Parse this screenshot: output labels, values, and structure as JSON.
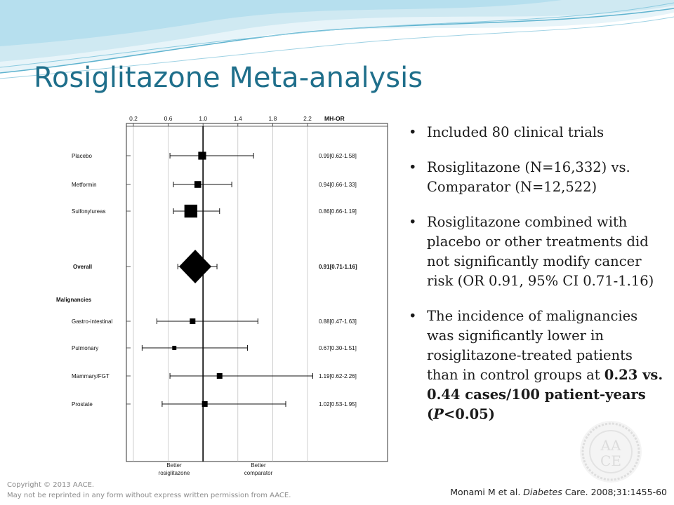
{
  "slide": {
    "title": "Rosiglitazone Meta-analysis"
  },
  "chart_data": {
    "type": "forest",
    "x_scale": "linear",
    "xlim": [
      0.2,
      2.2
    ],
    "xticks": [
      "0.2",
      "0.6",
      "1.0",
      "1.4",
      "1.8",
      "2.2"
    ],
    "stat_header": "MH-OR",
    "reference_line": 1.0,
    "left_annotation": [
      "Better",
      "rosiglitazone"
    ],
    "right_annotation": [
      "Better",
      "comparator"
    ],
    "group_header": "Malignancies",
    "rows": [
      {
        "label": "Placebo",
        "or": 0.99,
        "lo": 0.62,
        "hi": 1.58,
        "text": "0.99[0.62-1.58]",
        "kind": "study",
        "weight": 0.45
      },
      {
        "label": "Metformin",
        "or": 0.94,
        "lo": 0.66,
        "hi": 1.33,
        "text": "0.94[0.66-1.33]",
        "kind": "study",
        "weight": 0.35
      },
      {
        "label": "Sulfonylureas",
        "or": 0.86,
        "lo": 0.66,
        "hi": 1.19,
        "text": "0.86[0.66-1.19]",
        "kind": "study",
        "weight": 0.9
      },
      {
        "label": "Overall",
        "or": 0.91,
        "lo": 0.71,
        "hi": 1.16,
        "text": "0.91[0.71-1.16]",
        "kind": "overall"
      },
      {
        "label": "Gastro-intestinal",
        "or": 0.88,
        "lo": 0.47,
        "hi": 1.63,
        "text": "0.88[0.47-1.63]",
        "kind": "study",
        "weight": 0.25
      },
      {
        "label": "Pulmonary",
        "or": 0.67,
        "lo": 0.3,
        "hi": 1.51,
        "text": "0.67[0.30-1.51]",
        "kind": "study",
        "weight": 0.12
      },
      {
        "label": "Mammary/FGT",
        "or": 1.19,
        "lo": 0.62,
        "hi": 2.26,
        "text": "1.19[0.62-2.26]",
        "kind": "study",
        "weight": 0.25
      },
      {
        "label": "Prostate",
        "or": 1.02,
        "lo": 0.53,
        "hi": 1.95,
        "text": "1.02[0.53-1.95]",
        "kind": "study",
        "weight": 0.25
      }
    ]
  },
  "bullets": [
    {
      "text": "Included 80 clinical trials"
    },
    {
      "text": "Rosiglitazone (N=16,332) vs. Comparator (N=12,522)"
    },
    {
      "text": "Rosiglitazone combined with placebo or other treatments did not significantly modify cancer risk (OR 0.91, 95% CI 0.71-1.16)"
    },
    {
      "pre": "The incidence of malignancies was significantly lower in rosiglitazone-treated patients than in control groups at ",
      "bold": "0.23 vs. 0.44 cases/100 patient-years (",
      "bold_italic": "P",
      "bold_post": "<0.05)"
    }
  ],
  "seal": {
    "line1": "AA",
    "line2": "CE"
  },
  "footer": {
    "copyright": "Copyright © 2013 AACE.",
    "permission": "May not be reprinted in any form without express written permission from AACE.",
    "citation_pre": "Monami M et al. ",
    "citation_journal": "Diabetes",
    "citation_post": " Care. 2008;31:1455-60"
  },
  "colors": {
    "title": "#1f6f8b",
    "wave_light": "#cfe9f2",
    "wave_mid": "#9fd2e4",
    "wave_line": "#5fb3cf"
  }
}
